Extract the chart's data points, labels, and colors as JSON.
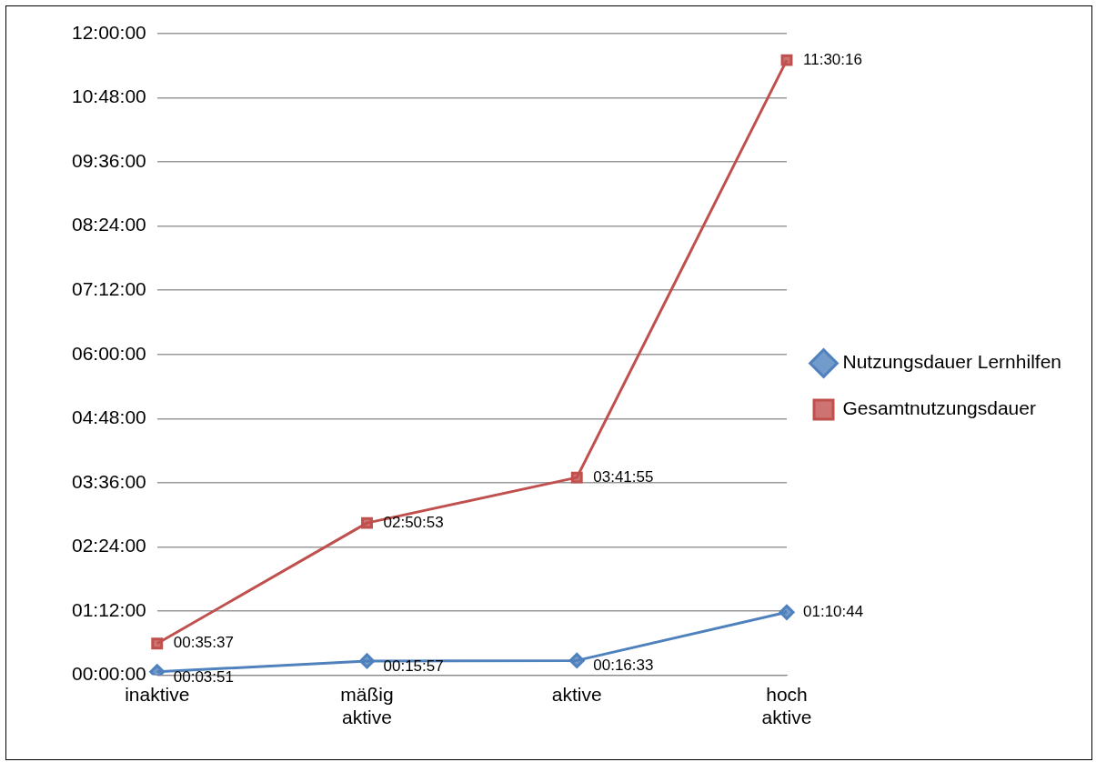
{
  "chart_data": {
    "type": "line",
    "categories": [
      "inaktive",
      "mäßig aktive",
      "aktive",
      "hoch aktive"
    ],
    "series": [
      {
        "name": "Nutzungsdauer Lernhilfen",
        "color": "#4f81bd",
        "marker": "diamond",
        "values": [
          0.06417,
          0.26583,
          0.27583,
          1.17889
        ],
        "value_labels": [
          "00:03:51",
          "00:15:57",
          "00:16:33",
          "01:10:44"
        ]
      },
      {
        "name": "Gesamtnutzungsdauer",
        "color": "#c0504d",
        "marker": "square",
        "values": [
          0.59361,
          2.84806,
          3.69861,
          11.50444
        ],
        "value_labels": [
          "00:35:37",
          "02:50:53",
          "03:41:55",
          "11:30:16"
        ]
      }
    ],
    "ylim": [
      0,
      12
    ],
    "yticks": [
      {
        "value": 0,
        "label": "00:00:00"
      },
      {
        "value": 1.2,
        "label": "01:12:00"
      },
      {
        "value": 2.4,
        "label": "02:24:00"
      },
      {
        "value": 3.6,
        "label": "03:36:00"
      },
      {
        "value": 4.8,
        "label": "04:48:00"
      },
      {
        "value": 6,
        "label": "06:00:00"
      },
      {
        "value": 7.2,
        "label": "07:12:00"
      },
      {
        "value": 8.4,
        "label": "08:24:00"
      },
      {
        "value": 9.6,
        "label": "09:36:00"
      },
      {
        "value": 10.8,
        "label": "10:48:00"
      },
      {
        "value": 12,
        "label": "12:00:00"
      }
    ],
    "grid": "y",
    "legend": "right",
    "line_style": "solid"
  }
}
